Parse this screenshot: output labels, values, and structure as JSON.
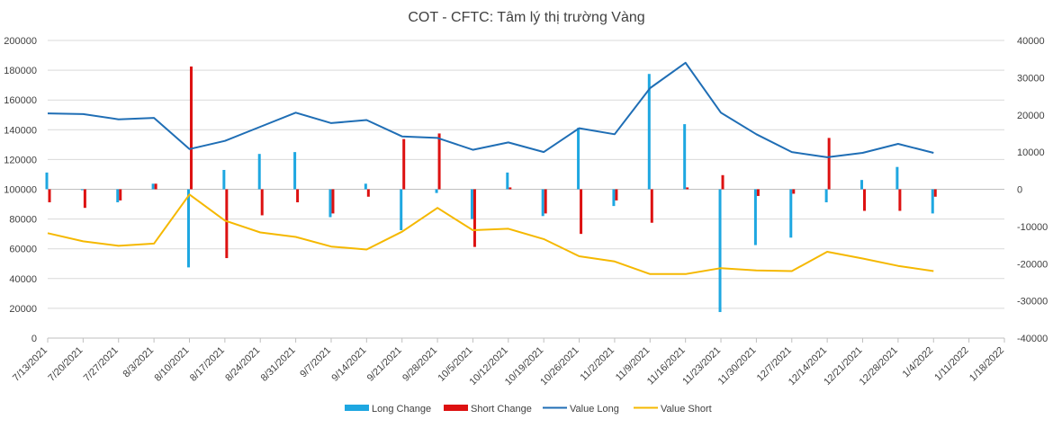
{
  "chart_data": {
    "type": "bar",
    "title": "COT - CFTC: Tâm lý thị trường Vàng",
    "x": [
      "7/13/2021",
      "7/20/2021",
      "7/27/2021",
      "8/3/2021",
      "8/10/2021",
      "8/17/2021",
      "8/24/2021",
      "8/31/2021",
      "9/7/2021",
      "9/14/2021",
      "9/21/2021",
      "9/28/2021",
      "10/5/2021",
      "10/12/2021",
      "10/19/2021",
      "10/26/2021",
      "11/2/2021",
      "11/9/2021",
      "11/16/2021",
      "11/23/2021",
      "11/30/2021",
      "12/7/2021",
      "12/14/2021",
      "12/21/2021",
      "12/28/2021",
      "1/4/2022",
      "1/11/2022",
      "1/18/2022"
    ],
    "y_left": {
      "min": 0,
      "max": 200000,
      "ticks": [
        "0",
        "20000",
        "40000",
        "60000",
        "80000",
        "100000",
        "120000",
        "140000",
        "160000",
        "180000",
        "200000"
      ]
    },
    "y_right": {
      "min": -40000,
      "max": 40000,
      "ticks": [
        "-40000",
        "-30000",
        "-20000",
        "-10000",
        "0",
        "10000",
        "20000",
        "30000",
        "40000"
      ]
    },
    "series": [
      {
        "name": "Long Change",
        "axis": "right",
        "kind": "bar",
        "color": "#1ea7e1",
        "values": [
          4500,
          0,
          -3500,
          1500,
          -21000,
          5200,
          9500,
          10000,
          -7500,
          1500,
          -11000,
          -1000,
          -8000,
          4500,
          -7200,
          16500,
          -4500,
          31000,
          17500,
          -33000,
          -15000,
          -13000,
          -3500,
          2500,
          6000,
          -6500,
          null,
          null
        ]
      },
      {
        "name": "Short Change",
        "axis": "right",
        "kind": "bar",
        "color": "#dd1111",
        "values": [
          -3500,
          -5000,
          -3000,
          1500,
          33000,
          -18500,
          -7000,
          -3500,
          -6500,
          -2000,
          13500,
          15000,
          -15500,
          500,
          -6500,
          -12000,
          -3000,
          -9000,
          500,
          3800,
          -1800,
          -1200,
          13800,
          -5800,
          -5800,
          -2000,
          null,
          null
        ]
      },
      {
        "name": "Value Long",
        "axis": "left",
        "kind": "line",
        "color": "#1f6eb5",
        "values": [
          151000,
          150500,
          147000,
          148000,
          127000,
          132500,
          142000,
          151500,
          144500,
          146500,
          135500,
          134500,
          126500,
          131500,
          125000,
          141000,
          137000,
          168000,
          185000,
          151500,
          137000,
          125000,
          121500,
          124500,
          130500,
          124500,
          null,
          null
        ]
      },
      {
        "name": "Value Short",
        "axis": "left",
        "kind": "line",
        "color": "#f5b800",
        "values": [
          70500,
          65000,
          62000,
          63500,
          96500,
          79000,
          71000,
          68000,
          61500,
          59500,
          71500,
          87500,
          72500,
          73500,
          66500,
          55000,
          51500,
          43000,
          43000,
          47000,
          45500,
          45000,
          58000,
          53500,
          48500,
          45000,
          null,
          null
        ]
      }
    ],
    "legend_position": "bottom",
    "grid": "horizontal"
  }
}
